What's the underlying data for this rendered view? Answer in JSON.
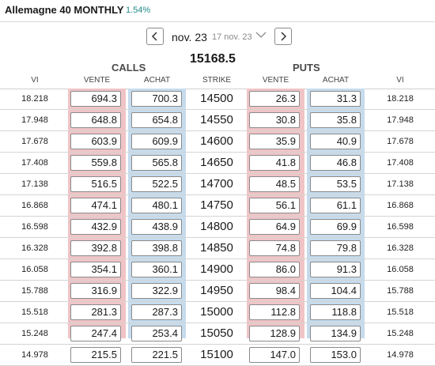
{
  "header": {
    "title": "Allemagne 40 MONTHLY",
    "change": "1.54%"
  },
  "nav": {
    "prev_icon": "chevron-left-icon",
    "next_icon": "chevron-right-icon",
    "date_main": "nov. 23",
    "date_sub": "17 nov. 23",
    "dropdown_icon": "chevron-down-icon"
  },
  "underlying_price": "15168.5",
  "groups": {
    "calls": "CALLS",
    "puts": "PUTS"
  },
  "columns": {
    "vi_left": "VI",
    "call_sell": "VENTE",
    "call_buy": "ACHAT",
    "strike": "STRIKE",
    "put_sell": "VENTE",
    "put_buy": "ACHAT",
    "vi_right": "VI"
  },
  "colors": {
    "sell_bg": "#f0c4c6",
    "buy_bg": "#c6dced",
    "change": "#1f8a8a"
  },
  "rows": [
    {
      "vi": "18.218",
      "call_sell": "694.3",
      "call_buy": "700.3",
      "strike": "14500",
      "put_sell": "26.3",
      "put_buy": "31.3",
      "vi_r": "18.218"
    },
    {
      "vi": "17.948",
      "call_sell": "648.8",
      "call_buy": "654.8",
      "strike": "14550",
      "put_sell": "30.8",
      "put_buy": "35.8",
      "vi_r": "17.948"
    },
    {
      "vi": "17.678",
      "call_sell": "603.9",
      "call_buy": "609.9",
      "strike": "14600",
      "put_sell": "35.9",
      "put_buy": "40.9",
      "vi_r": "17.678"
    },
    {
      "vi": "17.408",
      "call_sell": "559.8",
      "call_buy": "565.8",
      "strike": "14650",
      "put_sell": "41.8",
      "put_buy": "46.8",
      "vi_r": "17.408"
    },
    {
      "vi": "17.138",
      "call_sell": "516.5",
      "call_buy": "522.5",
      "strike": "14700",
      "put_sell": "48.5",
      "put_buy": "53.5",
      "vi_r": "17.138"
    },
    {
      "vi": "16.868",
      "call_sell": "474.1",
      "call_buy": "480.1",
      "strike": "14750",
      "put_sell": "56.1",
      "put_buy": "61.1",
      "vi_r": "16.868"
    },
    {
      "vi": "16.598",
      "call_sell": "432.9",
      "call_buy": "438.9",
      "strike": "14800",
      "put_sell": "64.9",
      "put_buy": "69.9",
      "vi_r": "16.598"
    },
    {
      "vi": "16.328",
      "call_sell": "392.8",
      "call_buy": "398.8",
      "strike": "14850",
      "put_sell": "74.8",
      "put_buy": "79.8",
      "vi_r": "16.328"
    },
    {
      "vi": "16.058",
      "call_sell": "354.1",
      "call_buy": "360.1",
      "strike": "14900",
      "put_sell": "86.0",
      "put_buy": "91.3",
      "vi_r": "16.058"
    },
    {
      "vi": "15.788",
      "call_sell": "316.9",
      "call_buy": "322.9",
      "strike": "14950",
      "put_sell": "98.4",
      "put_buy": "104.4",
      "vi_r": "15.788"
    },
    {
      "vi": "15.518",
      "call_sell": "281.3",
      "call_buy": "287.3",
      "strike": "15000",
      "put_sell": "112.8",
      "put_buy": "118.8",
      "vi_r": "15.518"
    },
    {
      "vi": "15.248",
      "call_sell": "247.4",
      "call_buy": "253.4",
      "strike": "15050",
      "put_sell": "128.9",
      "put_buy": "134.9",
      "vi_r": "15.248"
    },
    {
      "vi": "14.978",
      "call_sell": "215.5",
      "call_buy": "221.5",
      "strike": "15100",
      "put_sell": "147.0",
      "put_buy": "153.0",
      "vi_r": "14.978"
    }
  ]
}
